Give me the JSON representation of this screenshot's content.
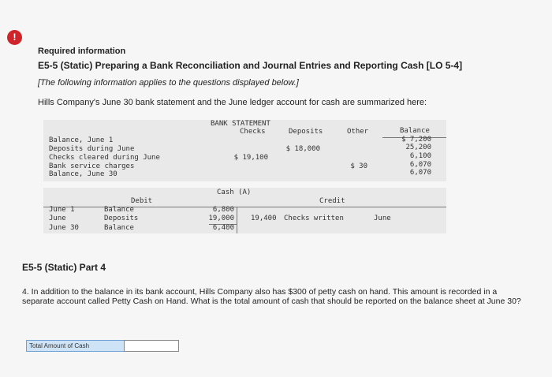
{
  "icon": "!",
  "header": {
    "required": "Required information",
    "title": "E5-5 (Static) Preparing a Bank Reconciliation and Journal Entries and Reporting Cash [LO 5-4]",
    "note": "[The following information applies to the questions displayed below.]",
    "intro": "Hills Company's June 30 bank statement and the June ledger account for cash are summarized here:"
  },
  "bank_statement": {
    "title": "BANK STATEMENT",
    "columns": {
      "checks": "Checks",
      "deposits": "Deposits",
      "other": "Other",
      "balance": "Balance"
    },
    "rows": [
      {
        "label": "Balance, June 1",
        "balance": "$ 7,200"
      },
      {
        "label": "Deposits during June",
        "deposits": "$ 18,000",
        "balance": "25,200"
      },
      {
        "label": "Checks cleared during June",
        "checks": "$ 19,100",
        "balance": "6,100"
      },
      {
        "label": "Bank service charges",
        "other": "$ 30",
        "balance": "6,070"
      },
      {
        "label": "Balance, June 30",
        "balance": "6,070"
      }
    ]
  },
  "cash_account": {
    "title": "Cash (A)",
    "debit": "Debit",
    "credit": "Credit",
    "debit_rows": [
      {
        "date": "June 1",
        "label": "Balance",
        "amount": "6,800"
      },
      {
        "date": "June",
        "label": "Deposits",
        "amount": "19,000"
      },
      {
        "date": "June 30",
        "label": "Balance",
        "amount": "6,400"
      }
    ],
    "credit_rows": [
      {
        "amount": "19,400",
        "label": "Checks written",
        "date": "June"
      }
    ]
  },
  "part": {
    "title": "E5-5 (Static) Part 4",
    "question": "4. In addition to the balance in its bank account, Hills Company also has $300 of petty cash on hand. This amount is recorded in a separate account called Petty Cash on Hand. What is the total amount of cash that should be reported on the balance sheet at June 30?",
    "answer_label": "Total Amount of Cash"
  }
}
